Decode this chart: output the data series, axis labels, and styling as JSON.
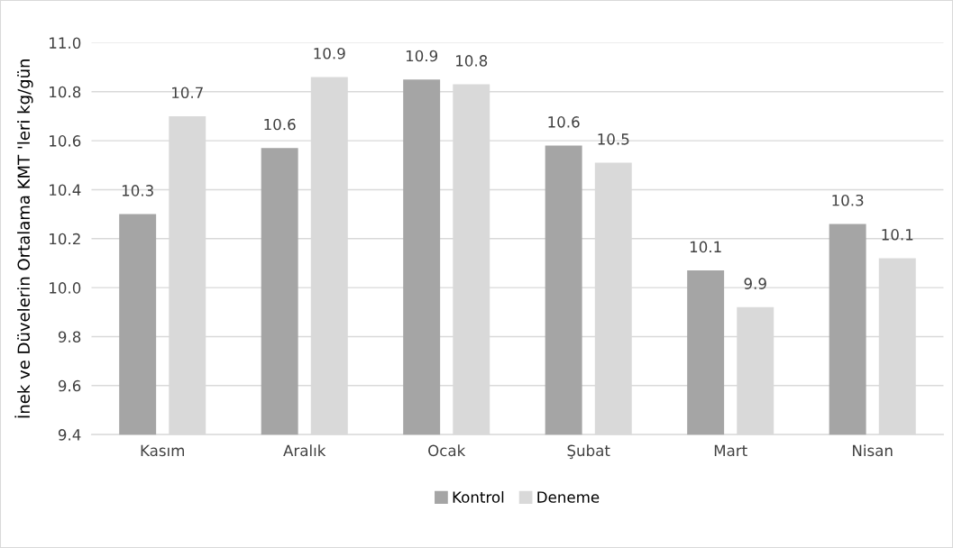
{
  "chart_data": {
    "type": "bar",
    "ylabel": "İnek ve Düvelerin Ortalama KMT 'leri kg/gün",
    "categories": [
      "Kasım",
      "Aralık",
      "Ocak",
      "Şubat",
      "Mart",
      "Nisan"
    ],
    "series": [
      {
        "name": "Kontrol",
        "color": "#a5a5a5",
        "values": [
          10.3,
          10.57,
          10.85,
          10.58,
          10.07,
          10.26
        ],
        "value_labels": [
          "10.3",
          "10.6",
          "10.9",
          "10.6",
          "10.1",
          "10.3"
        ]
      },
      {
        "name": "Deneme",
        "color": "#d9d9d9",
        "values": [
          10.7,
          10.86,
          10.83,
          10.51,
          9.92,
          10.12
        ],
        "value_labels": [
          "10.7",
          "10.9",
          "10.8",
          "10.5",
          "9.9",
          "10.1"
        ]
      }
    ],
    "ylim": [
      9.4,
      11.0
    ],
    "yticks": [
      {
        "value": 9.4,
        "label": "9.4"
      },
      {
        "value": 9.6,
        "label": "9.6"
      },
      {
        "value": 9.8,
        "label": "9.8"
      },
      {
        "value": 10.0,
        "label": "10.0"
      },
      {
        "value": 10.2,
        "label": "10.2"
      },
      {
        "value": 10.4,
        "label": "10.4"
      },
      {
        "value": 10.6,
        "label": "10.6"
      },
      {
        "value": 10.8,
        "label": "10.8"
      },
      {
        "value": 11.0,
        "label": "11.0"
      }
    ],
    "grid": "y",
    "legend": "bottom"
  }
}
